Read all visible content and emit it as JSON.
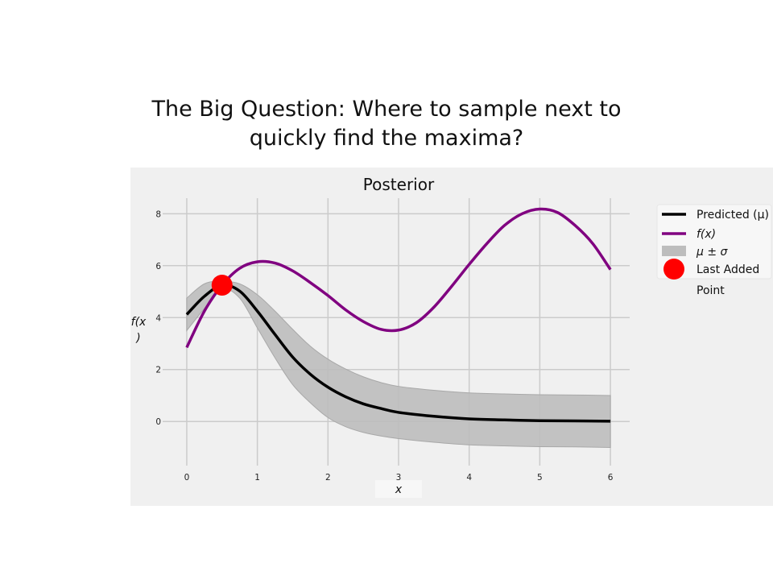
{
  "slide": {
    "title_line1": "The Big Question: Where to sample next to",
    "title_line2": "quickly find the maxima?"
  },
  "chart_data": {
    "type": "line",
    "title": "Posterior",
    "xlabel": "x",
    "ylabel": "f(x)",
    "xlim": [
      -0.25,
      6.25
    ],
    "ylim": [
      -1.7,
      8.6
    ],
    "xticks": [
      "0",
      "1",
      "2",
      "3",
      "4",
      "5",
      "6"
    ],
    "yticks": [
      "0",
      "2",
      "4",
      "6",
      "8"
    ],
    "grid": true,
    "legend_position": "outside-right",
    "colors": {
      "predicted": "#000000",
      "fx": "#800080",
      "band": "#bdbdbd",
      "point": "#ff0000",
      "background": "#f0f0f0",
      "grid": "#cbcbcb"
    },
    "legend": [
      {
        "label": "Predicted (μ)",
        "kind": "line",
        "color": "#000000"
      },
      {
        "label": "f(x)",
        "kind": "line",
        "color": "#800080"
      },
      {
        "label": "μ ± σ",
        "kind": "band",
        "color": "#bdbdbd"
      },
      {
        "label": "Last Added Point",
        "kind": "marker",
        "color": "#ff0000"
      }
    ],
    "series": [
      {
        "name": "f(x)",
        "x": [
          0,
          0.25,
          0.5,
          0.75,
          1.0,
          1.25,
          1.5,
          1.75,
          2.0,
          2.25,
          2.5,
          2.75,
          3.0,
          3.25,
          3.5,
          3.75,
          4.0,
          4.25,
          4.5,
          4.75,
          5.0,
          5.25,
          5.5,
          5.75,
          6.0
        ],
        "y": [
          2.85,
          4.25,
          5.25,
          5.9,
          6.15,
          6.1,
          5.8,
          5.35,
          4.85,
          4.3,
          3.85,
          3.55,
          3.52,
          3.8,
          4.4,
          5.2,
          6.05,
          6.85,
          7.55,
          8.0,
          8.18,
          8.05,
          7.55,
          6.85,
          5.85
        ]
      },
      {
        "name": "Predicted (μ)",
        "x": [
          0,
          0.25,
          0.5,
          0.75,
          1.0,
          1.25,
          1.5,
          1.75,
          2.0,
          2.25,
          2.5,
          2.75,
          3.0,
          3.5,
          4.0,
          4.5,
          5.0,
          5.5,
          6.0
        ],
        "y": [
          4.12,
          4.82,
          5.25,
          5.02,
          4.25,
          3.35,
          2.48,
          1.82,
          1.32,
          0.95,
          0.68,
          0.5,
          0.35,
          0.2,
          0.1,
          0.06,
          0.03,
          0.02,
          0.01
        ]
      },
      {
        "name": "μ ± σ",
        "x": [
          0,
          0.25,
          0.5,
          0.75,
          1.0,
          1.25,
          1.5,
          1.75,
          2.0,
          2.25,
          2.5,
          2.75,
          3.0,
          3.5,
          4.0,
          4.5,
          5.0,
          5.5,
          6.0
        ],
        "upper": [
          4.75,
          5.3,
          5.4,
          5.3,
          4.88,
          4.25,
          3.55,
          2.9,
          2.4,
          2.02,
          1.72,
          1.5,
          1.35,
          1.2,
          1.1,
          1.06,
          1.03,
          1.02,
          1.0
        ],
        "lower": [
          3.5,
          4.35,
          5.1,
          4.75,
          3.6,
          2.45,
          1.42,
          0.72,
          0.15,
          -0.2,
          -0.42,
          -0.56,
          -0.66,
          -0.8,
          -0.9,
          -0.94,
          -0.97,
          -0.98,
          -1.0
        ]
      }
    ],
    "last_point": {
      "x": 0.5,
      "y": 5.25
    }
  }
}
